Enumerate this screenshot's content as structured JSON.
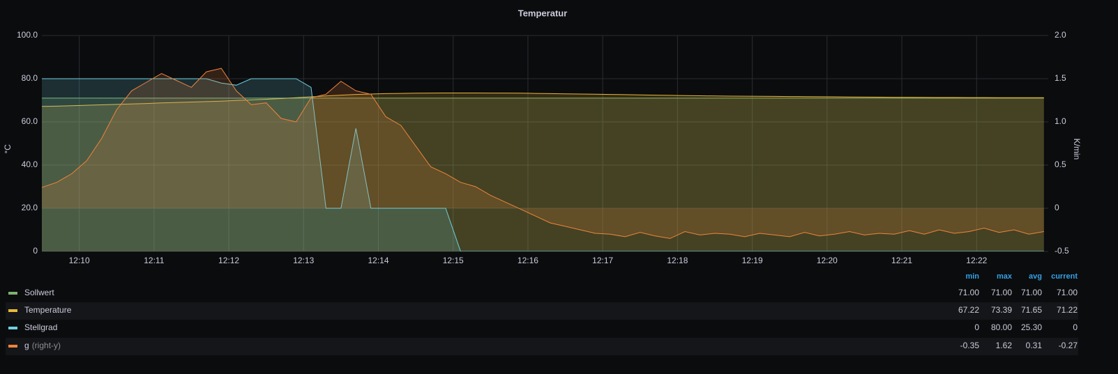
{
  "chart_data": {
    "type": "line",
    "title": "Temperatur",
    "y_label": "°C",
    "y2_label": "K/min",
    "x": [
      729.5,
      729.7,
      729.9,
      730.1,
      730.3,
      730.5,
      730.7,
      730.9,
      731.1,
      731.3,
      731.5,
      731.7,
      731.9,
      732.1,
      732.3,
      732.5,
      732.7,
      732.9,
      733.1,
      733.3,
      733.5,
      733.7,
      733.9,
      734.1,
      734.3,
      734.5,
      734.7,
      734.9,
      735.1,
      735.3,
      735.5,
      735.7,
      735.9,
      736.1,
      736.3,
      736.5,
      736.7,
      736.9,
      737.1,
      737.3,
      737.5,
      737.7,
      737.9,
      738.1,
      738.3,
      738.5,
      738.7,
      738.9,
      739.1,
      739.3,
      739.5,
      739.7,
      739.9,
      740.1,
      740.3,
      740.5,
      740.7,
      740.9,
      741.1,
      741.3,
      741.5,
      741.7,
      741.9,
      742.1,
      742.3,
      742.5,
      742.7,
      742.9
    ],
    "xlim": [
      729.5,
      742.93
    ],
    "xticks": [
      {
        "value": 730,
        "label": "12:10"
      },
      {
        "value": 731,
        "label": "12:11"
      },
      {
        "value": 732,
        "label": "12:12"
      },
      {
        "value": 733,
        "label": "12:13"
      },
      {
        "value": 734,
        "label": "12:14"
      },
      {
        "value": 735,
        "label": "12:15"
      },
      {
        "value": 736,
        "label": "12:16"
      },
      {
        "value": 737,
        "label": "12:17"
      },
      {
        "value": 738,
        "label": "12:18"
      },
      {
        "value": 739,
        "label": "12:19"
      },
      {
        "value": 740,
        "label": "12:20"
      },
      {
        "value": 741,
        "label": "12:21"
      },
      {
        "value": 742,
        "label": "12:22"
      }
    ],
    "ylim": [
      0,
      100
    ],
    "yticks": [
      0,
      {
        "value": 20,
        "label": "20.0"
      },
      {
        "value": 40,
        "label": "40.0"
      },
      {
        "value": 60,
        "label": "60.0"
      },
      {
        "value": 80,
        "label": "80.0"
      },
      {
        "value": 100,
        "label": "100.0"
      }
    ],
    "y2lim": [
      -0.5,
      2.0
    ],
    "y2ticks": [
      -0.5,
      0,
      0.5,
      {
        "value": 1,
        "label": "1.0"
      },
      1.5,
      {
        "value": 2,
        "label": "2.0"
      }
    ],
    "grid": true,
    "fill": true,
    "series": [
      {
        "name": "Sollwert",
        "color": "#7eb26d",
        "values": [
          71,
          71,
          71,
          71,
          71,
          71,
          71,
          71,
          71,
          71,
          71,
          71,
          71,
          71,
          71,
          71,
          71,
          71,
          71,
          71,
          71,
          71,
          71,
          71,
          71,
          71,
          71,
          71,
          71,
          71,
          71,
          71,
          71,
          71,
          71,
          71,
          71,
          71,
          71,
          71,
          71,
          71,
          71,
          71,
          71,
          71,
          71,
          71,
          71,
          71,
          71,
          71,
          71,
          71,
          71,
          71,
          71,
          71,
          71,
          71,
          71,
          71,
          71,
          71,
          71,
          71,
          71,
          71
        ]
      },
      {
        "name": "Temperature",
        "color": "#eab839",
        "values": [
          67.2,
          67.3,
          67.5,
          67.7,
          67.9,
          68.1,
          68.3,
          68.5,
          68.8,
          69.0,
          69.2,
          69.4,
          69.6,
          69.9,
          70.2,
          70.5,
          70.8,
          71.2,
          71.6,
          72.0,
          72.4,
          72.7,
          72.9,
          73.1,
          73.2,
          73.3,
          73.35,
          73.39,
          73.39,
          73.38,
          73.37,
          73.35,
          73.3,
          73.2,
          73.1,
          73.0,
          72.9,
          72.8,
          72.7,
          72.6,
          72.5,
          72.4,
          72.3,
          72.2,
          72.1,
          72.0,
          71.95,
          71.9,
          71.85,
          71.8,
          71.75,
          71.7,
          71.65,
          71.6,
          71.55,
          71.5,
          71.45,
          71.4,
          71.35,
          71.32,
          71.3,
          71.28,
          71.26,
          71.25,
          71.24,
          71.23,
          71.22,
          71.22
        ]
      },
      {
        "name": "Stellgrad",
        "color": "#6ed0e0",
        "values": [
          80,
          80,
          80,
          80,
          80,
          80,
          80,
          80,
          80,
          80,
          80,
          80,
          78,
          77,
          80,
          80,
          80,
          80,
          76,
          20,
          20,
          57,
          20,
          20,
          20,
          20,
          20,
          20,
          0,
          0,
          0,
          0,
          0,
          0,
          0,
          0,
          0,
          0,
          0,
          0,
          0,
          0,
          0,
          0,
          0,
          0,
          0,
          0,
          0,
          0,
          0,
          0,
          0,
          0,
          0,
          0,
          0,
          0,
          0,
          0,
          0,
          0,
          0,
          0,
          0,
          0,
          0,
          0
        ]
      },
      {
        "name": "g",
        "axis_note": "(right-y)",
        "axis": "y2",
        "color": "#ef843c",
        "values": [
          0.24,
          0.3,
          0.4,
          0.55,
          0.81,
          1.14,
          1.36,
          1.46,
          1.56,
          1.48,
          1.4,
          1.58,
          1.62,
          1.36,
          1.2,
          1.22,
          1.04,
          1.0,
          1.28,
          1.32,
          1.47,
          1.36,
          1.32,
          1.06,
          0.96,
          0.72,
          0.48,
          0.4,
          0.3,
          0.25,
          0.15,
          0.07,
          -0.01,
          -0.09,
          -0.17,
          -0.21,
          -0.25,
          -0.29,
          -0.3,
          -0.33,
          -0.28,
          -0.32,
          -0.35,
          -0.27,
          -0.31,
          -0.29,
          -0.3,
          -0.33,
          -0.29,
          -0.31,
          -0.33,
          -0.28,
          -0.32,
          -0.3,
          -0.27,
          -0.31,
          -0.29,
          -0.3,
          -0.26,
          -0.3,
          -0.25,
          -0.29,
          -0.27,
          -0.23,
          -0.28,
          -0.25,
          -0.3,
          -0.27
        ]
      }
    ],
    "legend_table": {
      "columns": [
        "min",
        "max",
        "avg",
        "current"
      ],
      "rows": [
        [
          "71.00",
          "71.00",
          "71.00",
          "71.00"
        ],
        [
          "67.22",
          "73.39",
          "71.65",
          "71.22"
        ],
        [
          "0",
          "80.00",
          "25.30",
          "0"
        ],
        [
          "-0.35",
          "1.62",
          "0.31",
          "-0.27"
        ]
      ]
    }
  }
}
